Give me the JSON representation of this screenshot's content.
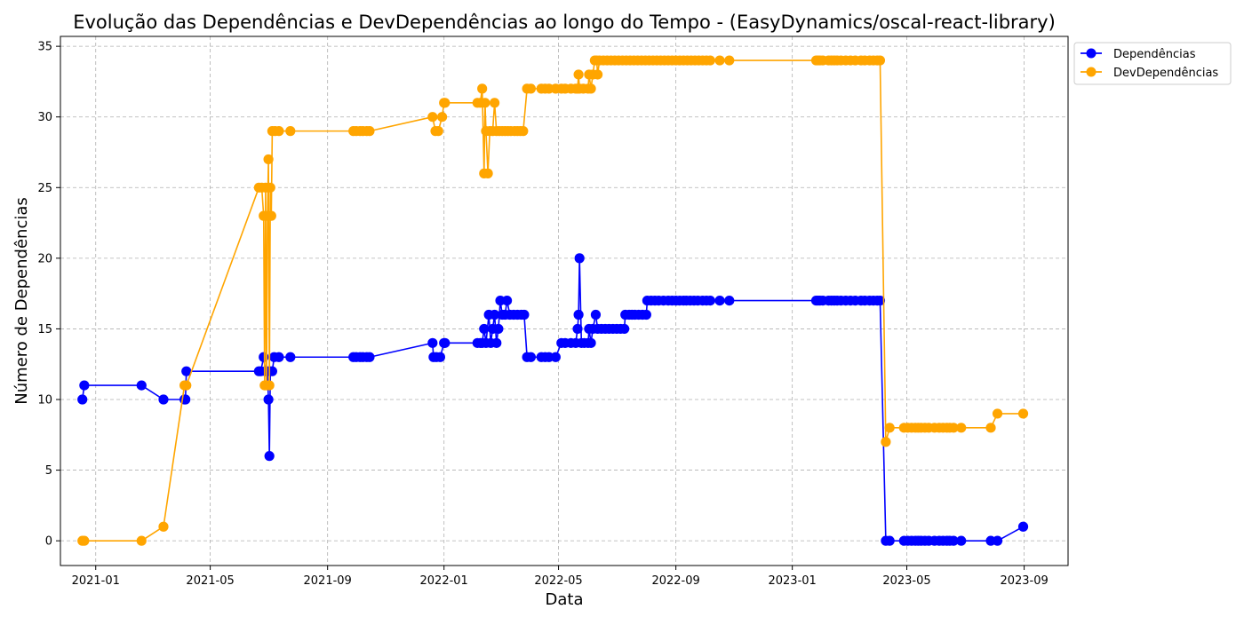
{
  "chart_data": {
    "type": "line",
    "title": "Evolução das Dependências e DevDependências ao longo do Tempo - (EasyDynamics/oscal-react-library)",
    "xlabel": "Data",
    "ylabel": "Número de Dependências",
    "xlim": [
      "2020-11-25",
      "2023-10-17"
    ],
    "ylim": [
      -1.75,
      35.7
    ],
    "grid": true,
    "legend_position": "top-right-outside",
    "x_ticks": [
      "2021-01",
      "2021-05",
      "2021-09",
      "2022-01",
      "2022-05",
      "2022-09",
      "2023-01",
      "2023-05",
      "2023-09"
    ],
    "y_ticks": [
      0,
      5,
      10,
      15,
      20,
      25,
      30,
      35
    ],
    "colors": {
      "Dependências": "#0000ff",
      "DevDependências": "#ffa500",
      "grid": "#b0b0b0"
    },
    "series": [
      {
        "name": "Dependências",
        "points": [
          [
            "2020-12-18",
            10
          ],
          [
            "2020-12-20",
            11
          ],
          [
            "2021-02-18",
            11
          ],
          [
            "2021-03-13",
            10
          ],
          [
            "2021-04-04",
            10
          ],
          [
            "2021-04-05",
            10
          ],
          [
            "2021-04-06",
            12
          ],
          [
            "2021-06-21",
            12
          ],
          [
            "2021-06-23",
            12
          ],
          [
            "2021-06-26",
            13
          ],
          [
            "2021-06-28",
            12
          ],
          [
            "2021-06-30",
            12
          ],
          [
            "2021-07-01",
            10
          ],
          [
            "2021-07-02",
            6
          ],
          [
            "2021-07-03",
            12
          ],
          [
            "2021-07-05",
            12
          ],
          [
            "2021-07-07",
            13
          ],
          [
            "2021-07-12",
            13
          ],
          [
            "2021-07-24",
            13
          ],
          [
            "2021-09-28",
            13
          ],
          [
            "2021-10-01",
            13
          ],
          [
            "2021-10-05",
            13
          ],
          [
            "2021-10-08",
            13
          ],
          [
            "2021-10-12",
            13
          ],
          [
            "2021-10-15",
            13
          ],
          [
            "2021-12-20",
            14
          ],
          [
            "2021-12-21",
            13
          ],
          [
            "2021-12-24",
            13
          ],
          [
            "2021-12-28",
            13
          ],
          [
            "2022-01-01",
            14
          ],
          [
            "2022-01-02",
            14
          ],
          [
            "2022-02-05",
            14
          ],
          [
            "2022-02-08",
            14
          ],
          [
            "2022-02-10",
            14
          ],
          [
            "2022-02-12",
            15
          ],
          [
            "2022-02-14",
            14
          ],
          [
            "2022-02-17",
            16
          ],
          [
            "2022-02-19",
            14
          ],
          [
            "2022-02-21",
            15
          ],
          [
            "2022-02-23",
            16
          ],
          [
            "2022-02-25",
            14
          ],
          [
            "2022-02-27",
            15
          ],
          [
            "2022-03-01",
            17
          ],
          [
            "2022-03-03",
            16
          ],
          [
            "2022-03-06",
            16
          ],
          [
            "2022-03-08",
            17
          ],
          [
            "2022-03-11",
            16
          ],
          [
            "2022-03-15",
            16
          ],
          [
            "2022-03-19",
            16
          ],
          [
            "2022-03-23",
            16
          ],
          [
            "2022-03-26",
            16
          ],
          [
            "2022-03-29",
            13
          ],
          [
            "2022-04-02",
            13
          ],
          [
            "2022-04-13",
            13
          ],
          [
            "2022-04-17",
            13
          ],
          [
            "2022-04-21",
            13
          ],
          [
            "2022-04-28",
            13
          ],
          [
            "2022-05-04",
            14
          ],
          [
            "2022-05-08",
            14
          ],
          [
            "2022-05-14",
            14
          ],
          [
            "2022-05-19",
            14
          ],
          [
            "2022-05-21",
            15
          ],
          [
            "2022-05-22",
            16
          ],
          [
            "2022-05-23",
            20
          ],
          [
            "2022-05-25",
            14
          ],
          [
            "2022-05-28",
            14
          ],
          [
            "2022-06-01",
            14
          ],
          [
            "2022-06-02",
            15
          ],
          [
            "2022-06-04",
            14
          ],
          [
            "2022-06-06",
            15
          ],
          [
            "2022-06-09",
            16
          ],
          [
            "2022-06-11",
            15
          ],
          [
            "2022-06-15",
            15
          ],
          [
            "2022-06-19",
            15
          ],
          [
            "2022-06-23",
            15
          ],
          [
            "2022-06-27",
            15
          ],
          [
            "2022-07-01",
            15
          ],
          [
            "2022-07-05",
            15
          ],
          [
            "2022-07-09",
            15
          ],
          [
            "2022-07-10",
            16
          ],
          [
            "2022-07-14",
            16
          ],
          [
            "2022-07-17",
            16
          ],
          [
            "2022-07-20",
            16
          ],
          [
            "2022-07-24",
            16
          ],
          [
            "2022-07-28",
            16
          ],
          [
            "2022-08-01",
            16
          ],
          [
            "2022-08-02",
            17
          ],
          [
            "2022-08-06",
            17
          ],
          [
            "2022-08-10",
            17
          ],
          [
            "2022-08-14",
            17
          ],
          [
            "2022-08-19",
            17
          ],
          [
            "2022-08-24",
            17
          ],
          [
            "2022-08-28",
            17
          ],
          [
            "2022-09-01",
            17
          ],
          [
            "2022-09-05",
            17
          ],
          [
            "2022-09-09",
            17
          ],
          [
            "2022-09-12",
            17
          ],
          [
            "2022-09-16",
            17
          ],
          [
            "2022-09-20",
            17
          ],
          [
            "2022-09-24",
            17
          ],
          [
            "2022-09-29",
            17
          ],
          [
            "2022-10-03",
            17
          ],
          [
            "2022-10-07",
            17
          ],
          [
            "2022-10-17",
            17
          ],
          [
            "2022-10-27",
            17
          ],
          [
            "2023-01-26",
            17
          ],
          [
            "2023-01-28",
            17
          ],
          [
            "2023-01-30",
            17
          ],
          [
            "2023-02-02",
            17
          ],
          [
            "2023-02-08",
            17
          ],
          [
            "2023-02-11",
            17
          ],
          [
            "2023-02-14",
            17
          ],
          [
            "2023-02-17",
            17
          ],
          [
            "2023-02-21",
            17
          ],
          [
            "2023-02-26",
            17
          ],
          [
            "2023-03-03",
            17
          ],
          [
            "2023-03-08",
            17
          ],
          [
            "2023-03-14",
            17
          ],
          [
            "2023-03-18",
            17
          ],
          [
            "2023-03-23",
            17
          ],
          [
            "2023-03-27",
            17
          ],
          [
            "2023-03-31",
            17
          ],
          [
            "2023-04-03",
            17
          ],
          [
            "2023-04-09",
            0
          ],
          [
            "2023-04-13",
            0
          ],
          [
            "2023-04-28",
            0
          ],
          [
            "2023-05-02",
            0
          ],
          [
            "2023-05-06",
            0
          ],
          [
            "2023-05-10",
            0
          ],
          [
            "2023-05-13",
            0
          ],
          [
            "2023-05-16",
            0
          ],
          [
            "2023-05-20",
            0
          ],
          [
            "2023-05-24",
            0
          ],
          [
            "2023-05-30",
            0
          ],
          [
            "2023-06-04",
            0
          ],
          [
            "2023-06-08",
            0
          ],
          [
            "2023-06-12",
            0
          ],
          [
            "2023-06-15",
            0
          ],
          [
            "2023-06-19",
            0
          ],
          [
            "2023-06-27",
            0
          ],
          [
            "2023-07-28",
            0
          ],
          [
            "2023-08-04",
            0
          ],
          [
            "2023-08-31",
            1
          ]
        ]
      },
      {
        "name": "DevDependências",
        "points": [
          [
            "2020-12-18",
            0
          ],
          [
            "2020-12-20",
            0
          ],
          [
            "2021-02-18",
            0
          ],
          [
            "2021-03-13",
            1
          ],
          [
            "2021-04-04",
            11
          ],
          [
            "2021-04-06",
            11
          ],
          [
            "2021-06-21",
            25
          ],
          [
            "2021-06-24",
            25
          ],
          [
            "2021-06-26",
            23
          ],
          [
            "2021-06-27",
            11
          ],
          [
            "2021-06-28",
            25
          ],
          [
            "2021-06-29",
            11
          ],
          [
            "2021-06-30",
            23
          ],
          [
            "2021-07-01",
            27
          ],
          [
            "2021-07-02",
            11
          ],
          [
            "2021-07-03",
            25
          ],
          [
            "2021-07-04",
            23
          ],
          [
            "2021-07-05",
            29
          ],
          [
            "2021-07-08",
            29
          ],
          [
            "2021-07-12",
            29
          ],
          [
            "2021-07-24",
            29
          ],
          [
            "2021-09-28",
            29
          ],
          [
            "2021-10-01",
            29
          ],
          [
            "2021-10-05",
            29
          ],
          [
            "2021-10-08",
            29
          ],
          [
            "2021-10-12",
            29
          ],
          [
            "2021-10-15",
            29
          ],
          [
            "2021-12-20",
            30
          ],
          [
            "2021-12-23",
            29
          ],
          [
            "2021-12-26",
            29
          ],
          [
            "2021-12-30",
            30
          ],
          [
            "2022-01-01",
            31
          ],
          [
            "2022-01-02",
            31
          ],
          [
            "2022-02-05",
            31
          ],
          [
            "2022-02-08",
            31
          ],
          [
            "2022-02-10",
            32
          ],
          [
            "2022-02-12",
            26
          ],
          [
            "2022-02-13",
            31
          ],
          [
            "2022-02-14",
            29
          ],
          [
            "2022-02-16",
            26
          ],
          [
            "2022-02-18",
            29
          ],
          [
            "2022-02-21",
            29
          ],
          [
            "2022-02-23",
            31
          ],
          [
            "2022-02-25",
            29
          ],
          [
            "2022-02-28",
            29
          ],
          [
            "2022-03-03",
            29
          ],
          [
            "2022-03-06",
            29
          ],
          [
            "2022-03-09",
            29
          ],
          [
            "2022-03-12",
            29
          ],
          [
            "2022-03-16",
            29
          ],
          [
            "2022-03-19",
            29
          ],
          [
            "2022-03-22",
            29
          ],
          [
            "2022-03-25",
            29
          ],
          [
            "2022-03-29",
            32
          ],
          [
            "2022-04-02",
            32
          ],
          [
            "2022-04-13",
            32
          ],
          [
            "2022-04-17",
            32
          ],
          [
            "2022-04-21",
            32
          ],
          [
            "2022-04-28",
            32
          ],
          [
            "2022-05-04",
            32
          ],
          [
            "2022-05-08",
            32
          ],
          [
            "2022-05-14",
            32
          ],
          [
            "2022-05-19",
            32
          ],
          [
            "2022-05-21",
            32
          ],
          [
            "2022-05-22",
            33
          ],
          [
            "2022-05-23",
            32
          ],
          [
            "2022-05-27",
            32
          ],
          [
            "2022-06-01",
            32
          ],
          [
            "2022-06-02",
            33
          ],
          [
            "2022-06-04",
            32
          ],
          [
            "2022-06-06",
            33
          ],
          [
            "2022-06-08",
            34
          ],
          [
            "2022-06-10",
            34
          ],
          [
            "2022-06-11",
            33
          ],
          [
            "2022-06-13",
            34
          ],
          [
            "2022-06-17",
            34
          ],
          [
            "2022-06-21",
            34
          ],
          [
            "2022-06-25",
            34
          ],
          [
            "2022-06-29",
            34
          ],
          [
            "2022-07-03",
            34
          ],
          [
            "2022-07-07",
            34
          ],
          [
            "2022-07-11",
            34
          ],
          [
            "2022-07-15",
            34
          ],
          [
            "2022-07-19",
            34
          ],
          [
            "2022-07-23",
            34
          ],
          [
            "2022-07-27",
            34
          ],
          [
            "2022-07-31",
            34
          ],
          [
            "2022-08-04",
            34
          ],
          [
            "2022-08-08",
            34
          ],
          [
            "2022-08-12",
            34
          ],
          [
            "2022-08-16",
            34
          ],
          [
            "2022-08-20",
            34
          ],
          [
            "2022-08-24",
            34
          ],
          [
            "2022-08-28",
            34
          ],
          [
            "2022-09-01",
            34
          ],
          [
            "2022-09-05",
            34
          ],
          [
            "2022-09-09",
            34
          ],
          [
            "2022-09-13",
            34
          ],
          [
            "2022-09-17",
            34
          ],
          [
            "2022-09-21",
            34
          ],
          [
            "2022-09-25",
            34
          ],
          [
            "2022-09-29",
            34
          ],
          [
            "2022-10-03",
            34
          ],
          [
            "2022-10-07",
            34
          ],
          [
            "2022-10-17",
            34
          ],
          [
            "2022-10-27",
            34
          ],
          [
            "2023-01-26",
            34
          ],
          [
            "2023-01-28",
            34
          ],
          [
            "2023-01-30",
            34
          ],
          [
            "2023-02-02",
            34
          ],
          [
            "2023-02-08",
            34
          ],
          [
            "2023-02-11",
            34
          ],
          [
            "2023-02-14",
            34
          ],
          [
            "2023-02-17",
            34
          ],
          [
            "2023-02-21",
            34
          ],
          [
            "2023-02-26",
            34
          ],
          [
            "2023-03-03",
            34
          ],
          [
            "2023-03-08",
            34
          ],
          [
            "2023-03-14",
            34
          ],
          [
            "2023-03-18",
            34
          ],
          [
            "2023-03-23",
            34
          ],
          [
            "2023-03-27",
            34
          ],
          [
            "2023-03-31",
            34
          ],
          [
            "2023-04-03",
            34
          ],
          [
            "2023-04-09",
            7
          ],
          [
            "2023-04-13",
            8
          ],
          [
            "2023-04-28",
            8
          ],
          [
            "2023-05-02",
            8
          ],
          [
            "2023-05-06",
            8
          ],
          [
            "2023-05-10",
            8
          ],
          [
            "2023-05-13",
            8
          ],
          [
            "2023-05-16",
            8
          ],
          [
            "2023-05-20",
            8
          ],
          [
            "2023-05-24",
            8
          ],
          [
            "2023-05-30",
            8
          ],
          [
            "2023-06-04",
            8
          ],
          [
            "2023-06-08",
            8
          ],
          [
            "2023-06-12",
            8
          ],
          [
            "2023-06-15",
            8
          ],
          [
            "2023-06-19",
            8
          ],
          [
            "2023-06-27",
            8
          ],
          [
            "2023-07-28",
            8
          ],
          [
            "2023-08-04",
            9
          ],
          [
            "2023-08-31",
            9
          ]
        ]
      }
    ]
  }
}
